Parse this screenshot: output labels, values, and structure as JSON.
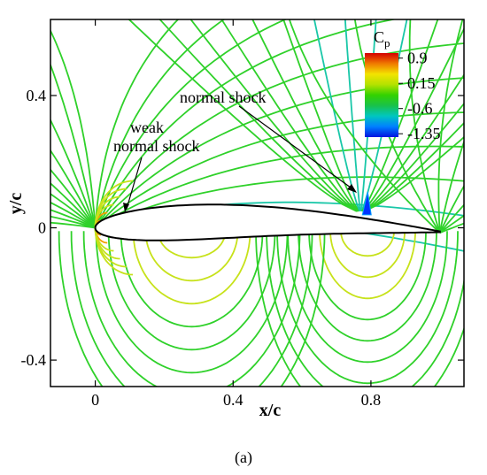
{
  "chart_data": {
    "type": "contour",
    "xlabel": "x/c",
    "ylabel": "y/c",
    "xlim": [
      -0.13,
      1.07
    ],
    "ylim": [
      -0.48,
      0.63
    ],
    "xticks": [
      0,
      0.4,
      0.8
    ],
    "yticks": [
      -0.4,
      0,
      0.4
    ],
    "xtick_labels": [
      "0",
      "0.4",
      "0.8"
    ],
    "ytick_labels": [
      "-0.4",
      "0",
      "0.4"
    ],
    "colorbar": {
      "title": "C",
      "title_sub": "p",
      "ticks": [
        0.9,
        0.15,
        -0.6,
        -1.35
      ],
      "tick_labels": [
        "0.9",
        "0.15",
        "-0.6",
        "-1.35"
      ],
      "colors": [
        "#d40000",
        "#f07a00",
        "#f3e300",
        "#b4e200",
        "#33d200",
        "#19c24a",
        "#00c6c0",
        "#0080ff",
        "#0014e0"
      ]
    },
    "annotations": [
      {
        "text": "normal shock",
        "target": [
          0.775,
          0.085
        ]
      },
      {
        "text": "weak",
        "target": null
      },
      {
        "text": "normal shock",
        "target": [
          0.06,
          0.04
        ]
      }
    ],
    "caption": "(a)"
  },
  "colors": {
    "contour_green": "#2fd12a",
    "contour_cyan": "#19c7a8",
    "contour_yellow": "#c7e21a",
    "contour_orange": "#f2a000",
    "airfoil_fill": "#ffffff",
    "airfoil_stroke": "#000000"
  }
}
